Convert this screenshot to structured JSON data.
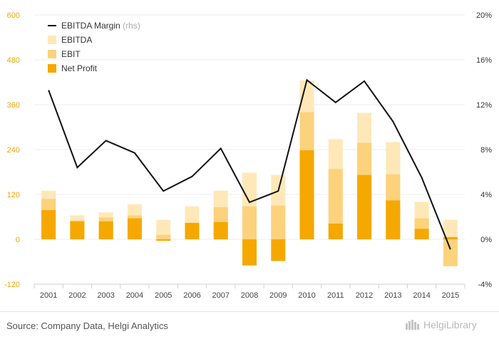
{
  "chart_data": {
    "type": "bar",
    "categories": [
      "2001",
      "2002",
      "2003",
      "2004",
      "2005",
      "2006",
      "2007",
      "2008",
      "2009",
      "2010",
      "2011",
      "2012",
      "2013",
      "2014",
      "2015"
    ],
    "series": [
      {
        "name": "EBITDA",
        "kind": "bar",
        "axis": "left",
        "values": [
          130,
          64,
          72,
          94,
          52,
          88,
          130,
          178,
          172,
          425,
          268,
          338,
          260,
          100,
          52
        ]
      },
      {
        "name": "EBIT",
        "kind": "bar",
        "axis": "left",
        "values": [
          108,
          50,
          58,
          64,
          12,
          44,
          86,
          88,
          90,
          340,
          188,
          258,
          174,
          56,
          -72
        ]
      },
      {
        "name": "Net Profit",
        "kind": "bar",
        "axis": "left",
        "values": [
          78,
          48,
          48,
          56,
          -4,
          44,
          46,
          -70,
          -58,
          238,
          42,
          172,
          104,
          28,
          6
        ]
      },
      {
        "name": "EBITDA Margin",
        "kind": "line",
        "axis": "right",
        "unit": "%",
        "values": [
          13.3,
          6.4,
          8.8,
          7.7,
          4.3,
          5.6,
          8.1,
          3.3,
          4.3,
          14.2,
          12.2,
          14.1,
          10.5,
          5.5,
          -0.9
        ]
      }
    ],
    "ylim_left": [
      -120,
      600
    ],
    "yticks_left": [
      "-120",
      "0",
      "120",
      "240",
      "360",
      "480",
      "600"
    ],
    "ylim_right": [
      -4,
      20
    ],
    "yticks_right": [
      "-4%",
      "0%",
      "4%",
      "8%",
      "12%",
      "16%",
      "20%"
    ],
    "legend": [
      {
        "label": "EBITDA Margin",
        "note": "(rhs)",
        "symbol": "line",
        "color": "#111111"
      },
      {
        "label": "EBITDA",
        "symbol": "box",
        "color": "#ffe8b8"
      },
      {
        "label": "EBIT",
        "symbol": "box",
        "color": "#fcd27c"
      },
      {
        "label": "Net Profit",
        "symbol": "box",
        "color": "#f5a800"
      }
    ],
    "grid": "horizontal"
  },
  "colors": {
    "ebitda": "#ffe8b8",
    "ebit": "#fcd27c",
    "net_profit": "#f5a800",
    "margin_line": "#111111",
    "left_axis_text": "#f0a500"
  },
  "footer": {
    "source": "Source: Company Data, Helgi Analytics",
    "logo_text": "HelgiLibrary",
    "logo_icon": "helgi-logo-icon"
  }
}
